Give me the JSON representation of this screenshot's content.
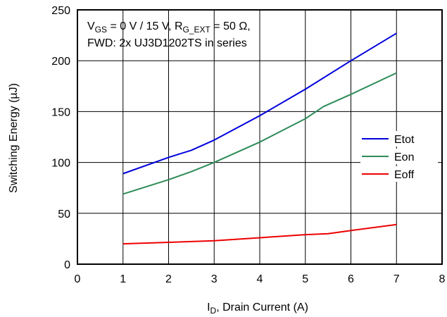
{
  "chart_data": {
    "type": "line",
    "xlabel": {
      "main": "I",
      "sub": "D",
      "rest": ", Drain Current (A)"
    },
    "ylabel": "Switching Energy (µJ)",
    "xlim": [
      0,
      8
    ],
    "ylim": [
      0,
      250
    ],
    "xticks": [
      0,
      1,
      2,
      3,
      4,
      5,
      6,
      7,
      8
    ],
    "yticks": [
      0,
      50,
      100,
      150,
      200,
      250
    ],
    "xtick_labels": [
      "0",
      "1",
      "2",
      "3",
      "4",
      "5",
      "6",
      "7",
      "8"
    ],
    "ytick_labels": [
      "0",
      "50",
      "100",
      "150",
      "200",
      "250"
    ],
    "grid": true,
    "legend_position": "right",
    "annotation": {
      "line1_parts": [
        "V",
        "GS",
        " = 0 V / 15 V, R",
        "G_EXT",
        " = 50 Ω,"
      ],
      "line2": "FWD: 2x UJ3D1202TS in series"
    },
    "series": [
      {
        "name": "Etot",
        "color": "#0000dd",
        "x": [
          1,
          2,
          2.5,
          3,
          4,
          5,
          6,
          7
        ],
        "y": [
          89,
          105,
          112,
          122,
          146,
          172,
          200,
          227
        ]
      },
      {
        "name": "Eon",
        "color": "#2e8b57",
        "x": [
          1,
          2,
          2.5,
          3,
          4,
          5,
          5.4,
          6,
          7
        ],
        "y": [
          69,
          83,
          91,
          100,
          120,
          143,
          155,
          167,
          188
        ]
      },
      {
        "name": "Eoff",
        "color": "#ee0000",
        "x": [
          1,
          2,
          3,
          4,
          5,
          5.5,
          6,
          7
        ],
        "y": [
          20,
          21.5,
          23,
          26,
          29,
          30,
          33,
          39
        ]
      }
    ]
  }
}
